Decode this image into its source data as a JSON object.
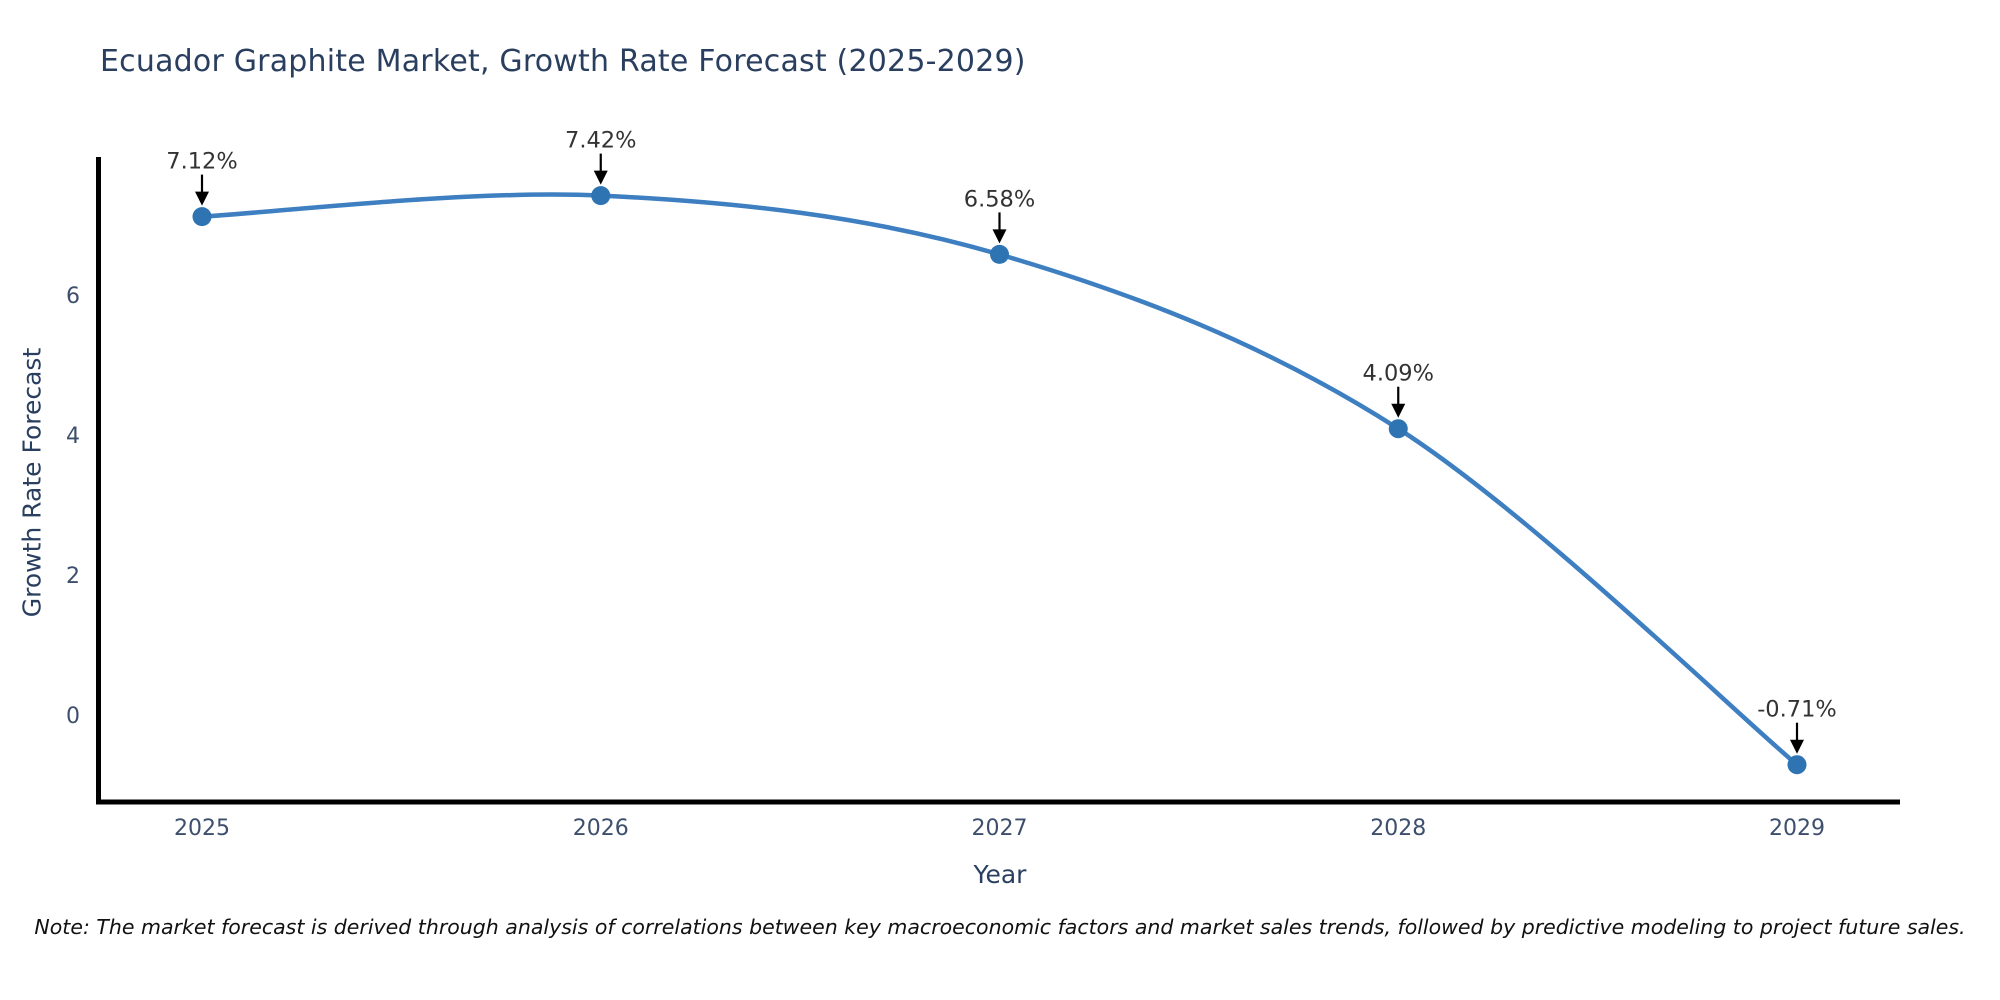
{
  "title": "Ecuador Graphite Market, Growth Rate Forecast (2025-2029)",
  "note": "Note: The market forecast is derived through analysis of correlations between key macroeconomic factors and market sales trends, followed by predictive modeling to project future sales.",
  "chart_data": {
    "type": "line",
    "title": "Ecuador Graphite Market, Growth Rate Forecast (2025-2029)",
    "xlabel": "Year",
    "ylabel": "Growth Rate Forecast",
    "categories": [
      2025,
      2026,
      2027,
      2028,
      2029
    ],
    "series": [
      {
        "name": "Growth Rate Forecast",
        "values": [
          7.12,
          7.42,
          6.58,
          4.09,
          -0.71
        ]
      }
    ],
    "point_labels": [
      "7.12%",
      "7.42%",
      "6.58%",
      "4.09%",
      "-0.71%"
    ],
    "yticks": [
      0,
      2,
      4,
      6
    ],
    "ylim": [
      -1.5,
      7.95
    ],
    "xlim": [
      2024.73,
      2029.26
    ],
    "line_shape": "spline",
    "grid": false,
    "legend": "none",
    "annotations_have_arrows": true,
    "colors": {
      "line": "#3d7fc1",
      "marker": "#2e73b2",
      "axis": "#000000",
      "arrow": "#000000",
      "title_text": "#2a3f5f",
      "tick_text": "#3d4f6d",
      "annotation_text": "#333333",
      "background": "#ffffff"
    }
  }
}
